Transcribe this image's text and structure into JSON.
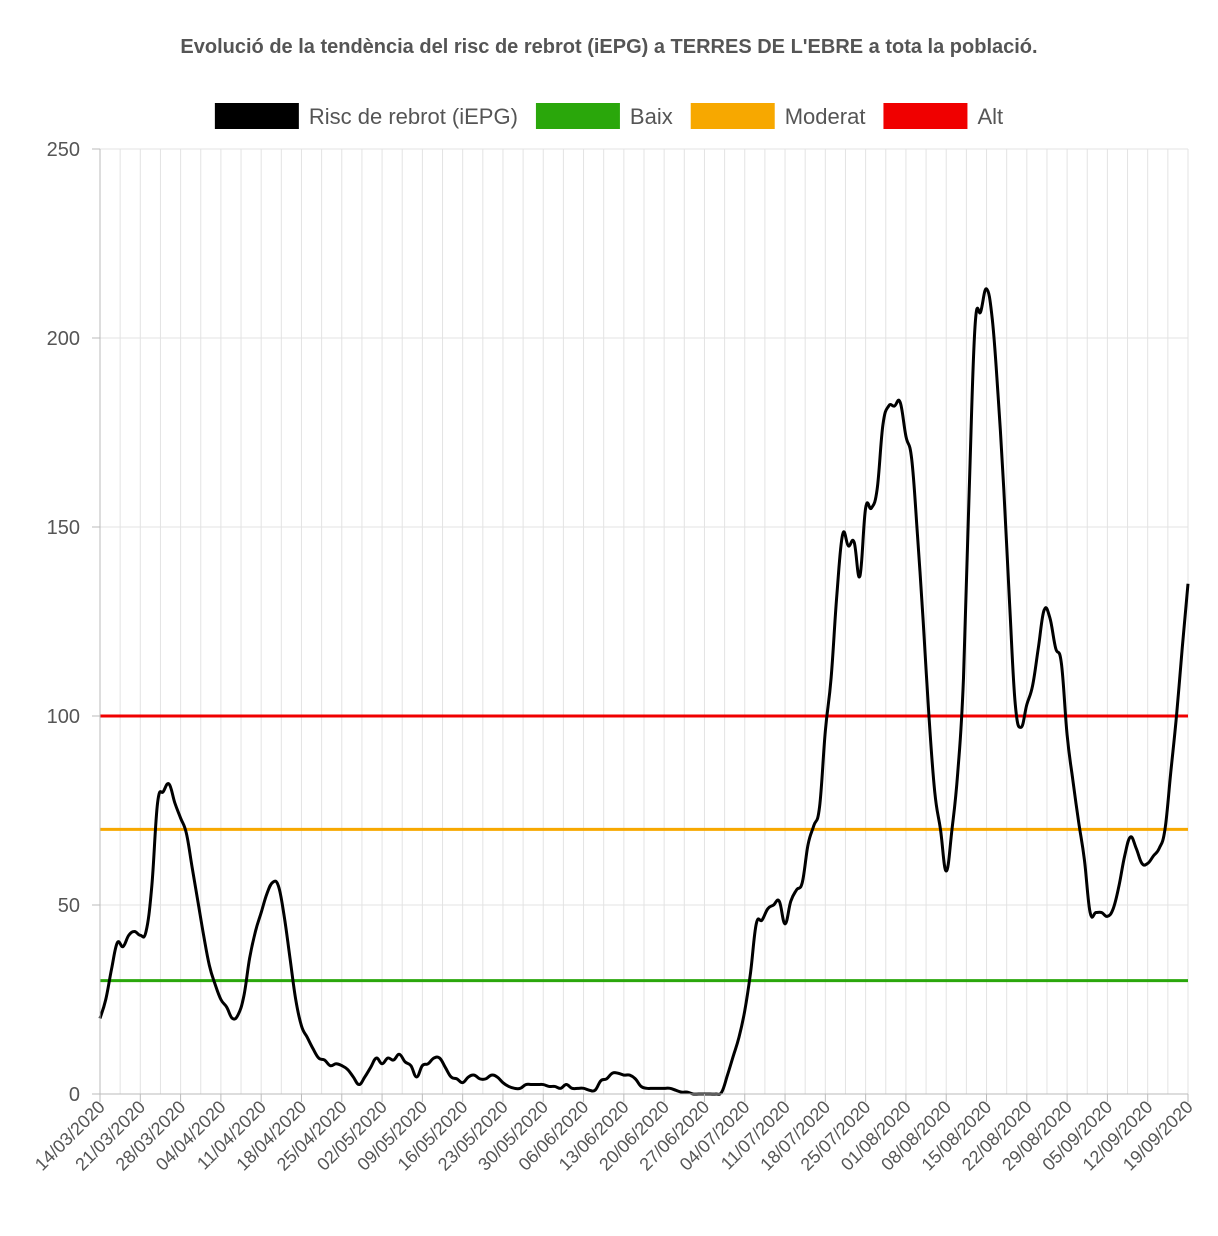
{
  "chart_data": {
    "type": "line",
    "title": "Evolució de la tendència del risc de rebrot (iEPG) a TERRES DE L'EBRE a tota la població.",
    "xlabel": "",
    "ylabel": "",
    "ylim": [
      0,
      250
    ],
    "yticks": [
      0,
      50,
      100,
      150,
      200,
      250
    ],
    "x_tick_labels": [
      "14/03/2020",
      "21/03/2020",
      "28/03/2020",
      "04/04/2020",
      "11/04/2020",
      "18/04/2020",
      "25/04/2020",
      "02/05/2020",
      "09/05/2020",
      "16/05/2020",
      "23/05/2020",
      "30/05/2020",
      "06/06/2020",
      "13/06/2020",
      "20/06/2020",
      "27/06/2020",
      "04/07/2020",
      "11/07/2020",
      "18/07/2020",
      "25/07/2020",
      "01/08/2020",
      "08/08/2020",
      "15/08/2020",
      "22/08/2020",
      "29/08/2020",
      "05/09/2020",
      "12/09/2020",
      "19/09/2020"
    ],
    "grid": true,
    "legend_position": "top",
    "series": [
      {
        "name": "Risc de rebrot (iEPG)",
        "color": "#000000",
        "points": [
          [
            "14/03/2020",
            20
          ],
          [
            "15/03/2020",
            25
          ],
          [
            "16/03/2020",
            33
          ],
          [
            "17/03/2020",
            40
          ],
          [
            "18/03/2020",
            39
          ],
          [
            "19/03/2020",
            42
          ],
          [
            "20/03/2020",
            43
          ],
          [
            "21/03/2020",
            42
          ],
          [
            "22/03/2020",
            43
          ],
          [
            "23/03/2020",
            55
          ],
          [
            "24/03/2020",
            77
          ],
          [
            "25/03/2020",
            80
          ],
          [
            "26/03/2020",
            82
          ],
          [
            "27/03/2020",
            77
          ],
          [
            "28/03/2020",
            73
          ],
          [
            "29/03/2020",
            69
          ],
          [
            "30/03/2020",
            60
          ],
          [
            "31/03/2020",
            51
          ],
          [
            "01/04/2020",
            42
          ],
          [
            "02/04/2020",
            34
          ],
          [
            "03/04/2020",
            29
          ],
          [
            "04/04/2020",
            25
          ],
          [
            "05/04/2020",
            23
          ],
          [
            "06/04/2020",
            20
          ],
          [
            "07/04/2020",
            21
          ],
          [
            "08/04/2020",
            26
          ],
          [
            "09/04/2020",
            36
          ],
          [
            "10/04/2020",
            43
          ],
          [
            "11/04/2020",
            48
          ],
          [
            "12/04/2020",
            53
          ],
          [
            "13/04/2020",
            56
          ],
          [
            "14/04/2020",
            55
          ],
          [
            "15/04/2020",
            47
          ],
          [
            "16/04/2020",
            36
          ],
          [
            "17/04/2020",
            25
          ],
          [
            "18/04/2020",
            18
          ],
          [
            "19/04/2020",
            15
          ],
          [
            "20/04/2020",
            12
          ],
          [
            "21/04/2020",
            9.5
          ],
          [
            "22/04/2020",
            9
          ],
          [
            "23/04/2020",
            7.5
          ],
          [
            "24/04/2020",
            8
          ],
          [
            "25/04/2020",
            7.5
          ],
          [
            "26/04/2020",
            6.5
          ],
          [
            "27/04/2020",
            4.5
          ],
          [
            "28/04/2020",
            2.5
          ],
          [
            "29/04/2020",
            4.5
          ],
          [
            "30/04/2020",
            7
          ],
          [
            "01/05/2020",
            9.5
          ],
          [
            "02/05/2020",
            8
          ],
          [
            "03/05/2020",
            9.5
          ],
          [
            "04/05/2020",
            9
          ],
          [
            "05/05/2020",
            10.5
          ],
          [
            "06/05/2020",
            8.5
          ],
          [
            "07/05/2020",
            7.5
          ],
          [
            "08/05/2020",
            4.5
          ],
          [
            "09/05/2020",
            7.5
          ],
          [
            "10/05/2020",
            8
          ],
          [
            "11/05/2020",
            9.5
          ],
          [
            "12/05/2020",
            9.5
          ],
          [
            "13/05/2020",
            7
          ],
          [
            "14/05/2020",
            4.5
          ],
          [
            "15/05/2020",
            4
          ],
          [
            "16/05/2020",
            3
          ],
          [
            "17/05/2020",
            4.5
          ],
          [
            "18/05/2020",
            5
          ],
          [
            "19/05/2020",
            4
          ],
          [
            "20/05/2020",
            4
          ],
          [
            "21/05/2020",
            5
          ],
          [
            "22/05/2020",
            4.5
          ],
          [
            "23/05/2020",
            3
          ],
          [
            "24/05/2020",
            2
          ],
          [
            "25/05/2020",
            1.5
          ],
          [
            "26/05/2020",
            1.5
          ],
          [
            "27/05/2020",
            2.5
          ],
          [
            "28/05/2020",
            2.5
          ],
          [
            "29/05/2020",
            2.5
          ],
          [
            "30/05/2020",
            2.5
          ],
          [
            "31/05/2020",
            2
          ],
          [
            "01/06/2020",
            2
          ],
          [
            "02/06/2020",
            1.5
          ],
          [
            "03/06/2020",
            2.5
          ],
          [
            "04/06/2020",
            1.5
          ],
          [
            "05/06/2020",
            1.5
          ],
          [
            "06/06/2020",
            1.5
          ],
          [
            "07/06/2020",
            1
          ],
          [
            "08/06/2020",
            1
          ],
          [
            "09/06/2020",
            3.5
          ],
          [
            "10/06/2020",
            4
          ],
          [
            "11/06/2020",
            5.5
          ],
          [
            "12/06/2020",
            5.5
          ],
          [
            "13/06/2020",
            5
          ],
          [
            "14/06/2020",
            5
          ],
          [
            "15/06/2020",
            4
          ],
          [
            "16/06/2020",
            2
          ],
          [
            "17/06/2020",
            1.5
          ],
          [
            "18/06/2020",
            1.5
          ],
          [
            "19/06/2020",
            1.5
          ],
          [
            "20/06/2020",
            1.5
          ],
          [
            "21/06/2020",
            1.5
          ],
          [
            "22/06/2020",
            1
          ],
          [
            "23/06/2020",
            0.5
          ],
          [
            "24/06/2020",
            0.5
          ],
          [
            "25/06/2020",
            0
          ],
          [
            "26/06/2020",
            0
          ],
          [
            "27/06/2020",
            0
          ],
          [
            "28/06/2020",
            0
          ],
          [
            "29/06/2020",
            0
          ],
          [
            "30/06/2020",
            0.5
          ],
          [
            "01/07/2020",
            5
          ],
          [
            "02/07/2020",
            10
          ],
          [
            "03/07/2020",
            15
          ],
          [
            "04/07/2020",
            22
          ],
          [
            "05/07/2020",
            32
          ],
          [
            "06/07/2020",
            45
          ],
          [
            "07/07/2020",
            46
          ],
          [
            "08/07/2020",
            49
          ],
          [
            "09/07/2020",
            50
          ],
          [
            "10/07/2020",
            51
          ],
          [
            "11/07/2020",
            45
          ],
          [
            "12/07/2020",
            51
          ],
          [
            "13/07/2020",
            54
          ],
          [
            "14/07/2020",
            56
          ],
          [
            "15/07/2020",
            66
          ],
          [
            "16/07/2020",
            71
          ],
          [
            "17/07/2020",
            76
          ],
          [
            "18/07/2020",
            96
          ],
          [
            "19/07/2020",
            110
          ],
          [
            "20/07/2020",
            132
          ],
          [
            "21/07/2020",
            148
          ],
          [
            "22/07/2020",
            145
          ],
          [
            "23/07/2020",
            146
          ],
          [
            "24/07/2020",
            137
          ],
          [
            "25/07/2020",
            155
          ],
          [
            "26/07/2020",
            155
          ],
          [
            "27/07/2020",
            160
          ],
          [
            "28/07/2020",
            177
          ],
          [
            "29/07/2020",
            182
          ],
          [
            "30/07/2020",
            182
          ],
          [
            "31/07/2020",
            183
          ],
          [
            "01/08/2020",
            174
          ],
          [
            "02/08/2020",
            168
          ],
          [
            "03/08/2020",
            148
          ],
          [
            "04/08/2020",
            125
          ],
          [
            "05/08/2020",
            100
          ],
          [
            "06/08/2020",
            80
          ],
          [
            "07/08/2020",
            70
          ],
          [
            "08/08/2020",
            59
          ],
          [
            "09/08/2020",
            70
          ],
          [
            "10/08/2020",
            85
          ],
          [
            "11/08/2020",
            110
          ],
          [
            "12/08/2020",
            160
          ],
          [
            "13/08/2020",
            203
          ],
          [
            "14/08/2020",
            207
          ],
          [
            "15/08/2020",
            213
          ],
          [
            "16/08/2020",
            205
          ],
          [
            "17/08/2020",
            185
          ],
          [
            "18/08/2020",
            160
          ],
          [
            "19/08/2020",
            130
          ],
          [
            "20/08/2020",
            103
          ],
          [
            "21/08/2020",
            97
          ],
          [
            "22/08/2020",
            103
          ],
          [
            "23/08/2020",
            108
          ],
          [
            "24/08/2020",
            118
          ],
          [
            "25/08/2020",
            128
          ],
          [
            "26/08/2020",
            126
          ],
          [
            "27/08/2020",
            118
          ],
          [
            "28/08/2020",
            114
          ],
          [
            "29/08/2020",
            95
          ],
          [
            "30/08/2020",
            83
          ],
          [
            "31/08/2020",
            72
          ],
          [
            "01/09/2020",
            62
          ],
          [
            "02/09/2020",
            48
          ],
          [
            "03/09/2020",
            48
          ],
          [
            "04/09/2020",
            48
          ],
          [
            "05/09/2020",
            47
          ],
          [
            "06/09/2020",
            49
          ],
          [
            "07/09/2020",
            55
          ],
          [
            "08/09/2020",
            63
          ],
          [
            "09/09/2020",
            68
          ],
          [
            "10/09/2020",
            65
          ],
          [
            "11/09/2020",
            61
          ],
          [
            "12/09/2020",
            61
          ],
          [
            "13/09/2020",
            63
          ],
          [
            "14/09/2020",
            65
          ],
          [
            "15/09/2020",
            70
          ],
          [
            "16/09/2020",
            85
          ],
          [
            "17/09/2020",
            100
          ],
          [
            "18/09/2020",
            118
          ],
          [
            "19/09/2020",
            135
          ]
        ]
      },
      {
        "name": "Baix",
        "color": "#2aa70b",
        "constant": 30
      },
      {
        "name": "Moderat",
        "color": "#f7a800",
        "constant": 70
      },
      {
        "name": "Alt",
        "color": "#f00000",
        "constant": 100
      }
    ]
  }
}
